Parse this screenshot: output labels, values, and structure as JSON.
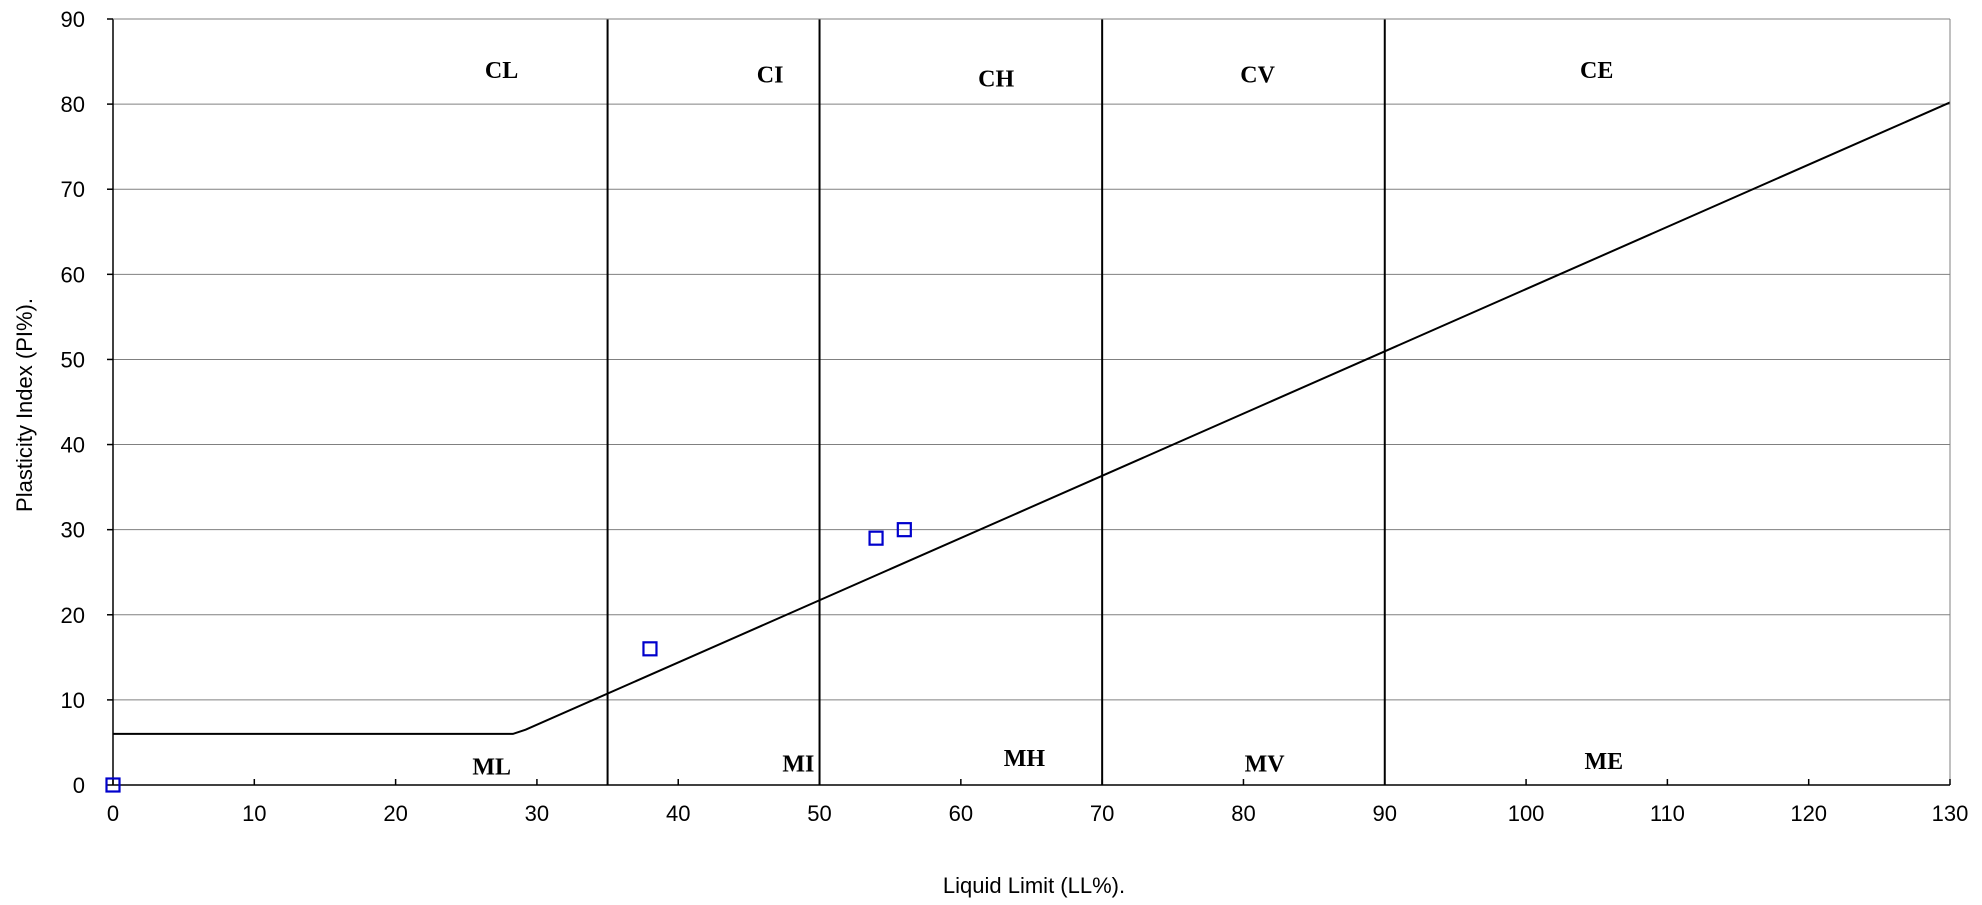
{
  "chart_data": {
    "type": "scatter",
    "title": "",
    "xlabel": "Liquid Limit (LL%).",
    "ylabel": "Plasticity Index (PI%).",
    "xlim": [
      0,
      130
    ],
    "ylim": [
      0,
      90
    ],
    "x_ticks": [
      0,
      10,
      20,
      30,
      40,
      50,
      60,
      70,
      80,
      90,
      100,
      110,
      120,
      130
    ],
    "y_ticks": [
      0,
      10,
      20,
      30,
      40,
      50,
      60,
      70,
      80,
      90
    ],
    "grid": "horizontal",
    "series": [
      {
        "marker": "open-square",
        "color": "#0000cc",
        "points": [
          {
            "x": 0,
            "y": 0
          },
          {
            "x": 38,
            "y": 16
          },
          {
            "x": 54,
            "y": 29
          },
          {
            "x": 56,
            "y": 30
          }
        ]
      }
    ],
    "a_line": [
      {
        "x": 0,
        "y": 6
      },
      {
        "x": 28.3,
        "y": 6
      },
      {
        "x": 29.2,
        "y": 6.5
      },
      {
        "x": 130,
        "y": 80.2
      }
    ],
    "boundaries_ll": [
      35,
      50,
      70,
      90
    ],
    "zone_labels": [
      {
        "text": "CL",
        "x": 27.5,
        "y": 84
      },
      {
        "text": "CI",
        "x": 46.5,
        "y": 83.5
      },
      {
        "text": "CH",
        "x": 62.5,
        "y": 83
      },
      {
        "text": "CV",
        "x": 81,
        "y": 83.5
      },
      {
        "text": "CE",
        "x": 105,
        "y": 84
      },
      {
        "text": "ML",
        "x": 26.8,
        "y": 2.2
      },
      {
        "text": "MI",
        "x": 48.5,
        "y": 2.5
      },
      {
        "text": "MH",
        "x": 64.5,
        "y": 3.2
      },
      {
        "text": "MV",
        "x": 81.5,
        "y": 2.5
      },
      {
        "text": "ME",
        "x": 105.5,
        "y": 2.8
      }
    ],
    "colors": {
      "marker": "#0000cc",
      "grid": "#808080",
      "lines": "#000000"
    }
  }
}
